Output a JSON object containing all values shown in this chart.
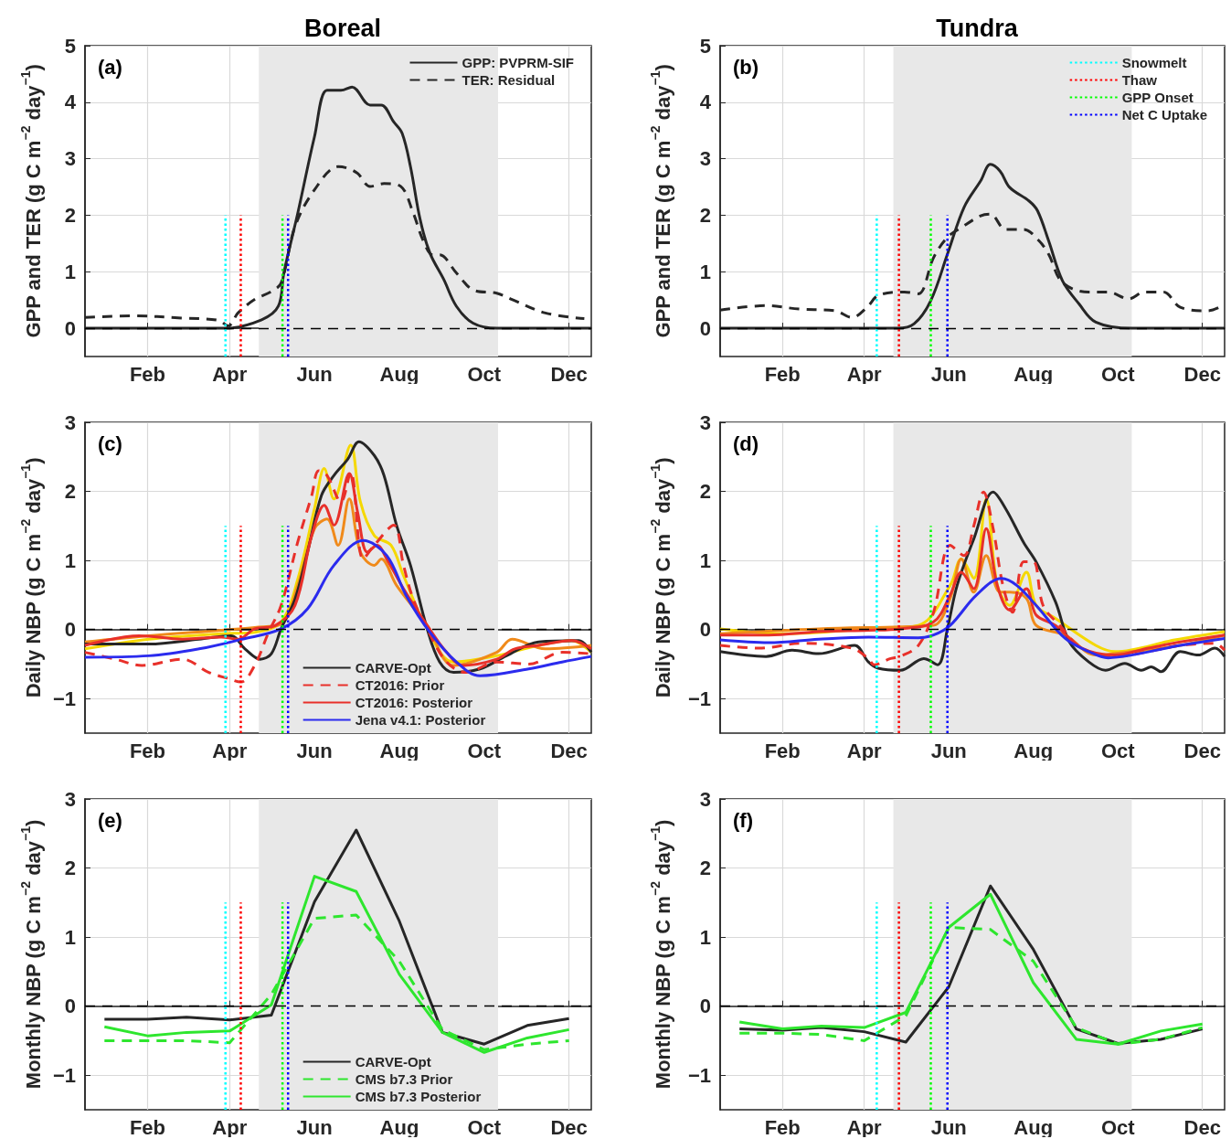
{
  "chart_data": [
    {
      "type": "line",
      "title": "Boreal",
      "ylabel": "GPP and TER (g C m$^{−2}$ day$^{−1}$)",
      "annotations": [
        "(a)"
      ],
      "xlim": [
        "--01-01",
        "--12-31"
      ],
      "xticks": [
        {
          "value": "--02-15",
          "label": "Feb"
        },
        {
          "value": "--04-15",
          "label": "Apr"
        },
        {
          "value": "--06-15",
          "label": "Jun"
        },
        {
          "value": "--08-15",
          "label": "Aug"
        },
        {
          "value": "--10-15",
          "label": "Oct"
        },
        {
          "value": "--12-15",
          "label": "Dec"
        }
      ],
      "ylim": [
        -0.5,
        5
      ],
      "yticks": [
        0,
        1,
        2,
        3,
        4,
        5
      ],
      "grid": true,
      "legend": "top right",
      "ref_lines": [
        {
          "axis": "y",
          "value": 0,
          "color": "#000000",
          "line_style": "dashed"
        }
      ],
      "bands": [
        {
          "axis": "x",
          "from": "--05-06",
          "to": "--10-25",
          "color": "#e8e8e8"
        }
      ],
      "series": [
        {
          "name": "GPP: PVPRM-SIF",
          "color": "#262626",
          "line_style": "solid",
          "x": [
            "--01-01",
            "--04-12",
            "--05-08",
            "--05-20",
            "--05-24",
            "--06-03",
            "--06-15",
            "--06-24",
            "--07-04",
            "--07-12",
            "--07-25",
            "--08-02",
            "--08-11",
            "--08-17",
            "--08-23",
            "--08-30",
            "--09-06",
            "--09-16",
            "--09-25",
            "--10-07",
            "--10-24",
            "--12-31"
          ],
          "values": [
            0,
            0,
            0.15,
            0.39,
            0.98,
            2.04,
            3.39,
            4.21,
            4.21,
            4.27,
            3.95,
            3.95,
            3.65,
            3.45,
            2.86,
            1.92,
            1.33,
            0.86,
            0.39,
            0.09,
            0,
            0
          ]
        },
        {
          "name": "TER: Residual",
          "color": "#262626",
          "line_style": "dashed",
          "x": [
            "--01-01",
            "--02-04",
            "--03-12",
            "--04-07",
            "--04-14",
            "--04-21",
            "--05-03",
            "--05-15",
            "--05-22",
            "--06-01",
            "--06-15",
            "--07-02",
            "--07-09",
            "--07-16",
            "--07-25",
            "--08-04",
            "--08-16",
            "--08-25",
            "--09-01",
            "--09-08",
            "--09-13",
            "--09-25",
            "--10-07",
            "--10-24",
            "--11-04",
            "--11-28",
            "--12-26"
          ],
          "values": [
            0.19,
            0.22,
            0.18,
            0.14,
            0.04,
            0.27,
            0.51,
            0.65,
            0.8,
            1.8,
            2.45,
            2.86,
            2.83,
            2.74,
            2.51,
            2.56,
            2.51,
            2.04,
            1.56,
            1.3,
            1.3,
            0.98,
            0.68,
            0.62,
            0.51,
            0.27,
            0.17
          ]
        },
        {
          "color": "#00ffff",
          "line_style": "dotted",
          "x": [
            "--04-12",
            "--04-12"
          ],
          "values": [
            -0.5,
            2
          ]
        },
        {
          "color": "#ff0000",
          "line_style": "dotted",
          "x": [
            "--04-23",
            "--04-23"
          ],
          "values": [
            -0.5,
            2
          ]
        },
        {
          "color": "#00ff00",
          "line_style": "dotted",
          "x": [
            "--05-23",
            "--05-23"
          ],
          "values": [
            -0.5,
            2
          ]
        },
        {
          "color": "#0000ff",
          "line_style": "dotted",
          "x": [
            "--05-27",
            "--05-27"
          ],
          "values": [
            -0.5,
            2
          ]
        }
      ]
    },
    {
      "type": "line",
      "title": "Tundra",
      "ylabel": "GPP and TER (g C m$^{−2}$ day$^{−1}$)",
      "annotations": [
        "(b)"
      ],
      "xlim": [
        "--01-01",
        "--12-31"
      ],
      "xticks": [
        {
          "value": "--02-15",
          "label": "Feb"
        },
        {
          "value": "--04-15",
          "label": "Apr"
        },
        {
          "value": "--06-15",
          "label": "Jun"
        },
        {
          "value": "--08-15",
          "label": "Aug"
        },
        {
          "value": "--10-15",
          "label": "Oct"
        },
        {
          "value": "--12-15",
          "label": "Dec"
        }
      ],
      "ylim": [
        -0.5,
        5
      ],
      "yticks": [
        0,
        1,
        2,
        3,
        4,
        5
      ],
      "grid": true,
      "legend": "top right",
      "ref_lines": [
        {
          "axis": "y",
          "value": 0,
          "color": "#000000",
          "line_style": "dashed"
        }
      ],
      "bands": [
        {
          "axis": "x",
          "from": "--05-06",
          "to": "--10-25",
          "color": "#e8e8e8"
        }
      ],
      "series": [
        {
          "color": "#262626",
          "line_style": "solid",
          "x": [
            "--01-01",
            "--05-09",
            "--05-21",
            "--06-02",
            "--06-14",
            "--06-26",
            "--07-08",
            "--07-15",
            "--07-22",
            "--07-29",
            "--08-12",
            "--08-18",
            "--08-26",
            "--09-05",
            "--09-17",
            "--09-29",
            "--10-25",
            "--12-31"
          ],
          "values": [
            0,
            0,
            0.08,
            0.49,
            1.31,
            2.14,
            2.61,
            2.9,
            2.78,
            2.49,
            2.25,
            2.08,
            1.55,
            0.84,
            0.43,
            0.11,
            0,
            0
          ]
        },
        {
          "color": "#262626",
          "line_style": "dashed",
          "x": [
            "--01-01",
            "--02-03",
            "--02-27",
            "--03-25",
            "--04-06",
            "--04-17",
            "--04-25",
            "--05-14",
            "--05-24",
            "--06-04",
            "--06-14",
            "--06-24",
            "--07-08",
            "--07-15",
            "--07-26",
            "--08-08",
            "--08-19",
            "--08-26",
            "--09-05",
            "--09-24",
            "--10-08",
            "--10-23",
            "--11-03",
            "--11-17",
            "--11-29",
            "--12-19",
            "--12-31"
          ],
          "values": [
            0.32,
            0.4,
            0.34,
            0.31,
            0.19,
            0.37,
            0.58,
            0.64,
            0.61,
            1.25,
            1.61,
            1.78,
            1.99,
            2.02,
            1.75,
            1.75,
            1.55,
            1.31,
            0.81,
            0.64,
            0.64,
            0.52,
            0.64,
            0.64,
            0.37,
            0.31,
            0.42
          ]
        },
        {
          "name": "Snowmelt",
          "color": "#00ffff",
          "line_style": "dotted",
          "x": [
            "--04-24",
            "--04-24"
          ],
          "values": [
            -0.5,
            2
          ]
        },
        {
          "name": "Thaw",
          "color": "#ff0000",
          "line_style": "dotted",
          "x": [
            "--05-10",
            "--05-10"
          ],
          "values": [
            -0.5,
            2
          ]
        },
        {
          "name": "GPP Onset",
          "color": "#00ff00",
          "line_style": "dotted",
          "x": [
            "--06-02",
            "--06-02"
          ],
          "values": [
            -0.5,
            2
          ]
        },
        {
          "name": "Net C Uptake",
          "color": "#0000ff",
          "line_style": "dotted",
          "x": [
            "--06-14",
            "--06-14"
          ],
          "values": [
            -0.5,
            2
          ]
        }
      ]
    },
    {
      "type": "line",
      "ylabel": "Daily NBP (g C m$^{−2}$ day$^{−1}$)",
      "annotations": [
        "(c)"
      ],
      "xlim": [
        "--01-01",
        "--12-31"
      ],
      "xticks": [
        {
          "value": "--02-15",
          "label": "Feb"
        },
        {
          "value": "--04-15",
          "label": "Apr"
        },
        {
          "value": "--06-15",
          "label": "Jun"
        },
        {
          "value": "--08-15",
          "label": "Aug"
        },
        {
          "value": "--10-15",
          "label": "Oct"
        },
        {
          "value": "--12-15",
          "label": "Dec"
        }
      ],
      "ylim": [
        -1.5,
        3
      ],
      "yticks": [
        -1,
        0,
        1,
        2,
        3
      ],
      "grid": true,
      "legend": "bottom",
      "ref_lines": [
        {
          "axis": "y",
          "value": 0,
          "color": "#000000",
          "line_style": "dashed"
        }
      ],
      "bands": [
        {
          "axis": "x",
          "from": "--05-06",
          "to": "--10-25",
          "color": "#e8e8e8"
        }
      ],
      "series": [
        {
          "color": "#f5d800",
          "line_style": "solid",
          "x": [
            "--01-01",
            "--02-16",
            "--04-09",
            "--05-03",
            "--05-22",
            "--06-03",
            "--06-15",
            "--06-22",
            "--06-29",
            "--07-11",
            "--07-18",
            "--07-28",
            "--08-09",
            "--08-18",
            "--09-04",
            "--09-23",
            "--10-24",
            "--11-23",
            "--12-17",
            "--12-31"
          ],
          "values": [
            -0.28,
            -0.14,
            -0.06,
            -0.04,
            0.11,
            0.73,
            1.75,
            2.33,
            1.89,
            2.67,
            1.85,
            1.36,
            1.22,
            0.78,
            0.01,
            -0.47,
            -0.38,
            -0.23,
            -0.16,
            -0.33
          ]
        },
        {
          "color": "#f08a1a",
          "line_style": "solid",
          "x": [
            "--01-01",
            "--02-16",
            "--04-09",
            "--05-03",
            "--05-22",
            "--06-03",
            "--06-15",
            "--06-24",
            "--07-02",
            "--07-10",
            "--07-18",
            "--07-28",
            "--08-02",
            "--08-13",
            "--09-04",
            "--09-23",
            "--10-24",
            "--11-04",
            "--11-28",
            "--12-31"
          ],
          "values": [
            -0.18,
            -0.09,
            -0.01,
            0.03,
            0.08,
            0.64,
            1.46,
            1.6,
            1.22,
            1.89,
            1.12,
            0.93,
            1.02,
            0.64,
            0.06,
            -0.52,
            -0.33,
            -0.14,
            -0.28,
            -0.23
          ]
        },
        {
          "name": "CARVE-Opt",
          "color": "#262626",
          "line_style": "solid",
          "x": [
            "--01-01",
            "--02-16",
            "--03-24",
            "--04-16",
            "--04-26",
            "--05-07",
            "--05-15",
            "--05-22",
            "--06-01",
            "--06-10",
            "--06-20",
            "--06-29",
            "--07-09",
            "--07-17",
            "--07-28",
            "--08-04",
            "--08-13",
            "--08-23",
            "--09-04",
            "--09-13",
            "--09-23",
            "--10-12",
            "--10-31",
            "--11-23",
            "--12-22",
            "--12-31"
          ],
          "values": [
            -0.21,
            -0.21,
            -0.14,
            -0.09,
            -0.28,
            -0.43,
            -0.35,
            0.01,
            0.44,
            1.12,
            1.94,
            2.23,
            2.47,
            2.72,
            2.52,
            2.23,
            1.51,
            0.93,
            0.01,
            -0.47,
            -0.62,
            -0.57,
            -0.38,
            -0.18,
            -0.16,
            -0.33
          ]
        },
        {
          "name": "CT2016: Prior",
          "color": "#e8302a",
          "line_style": "dashed",
          "x": [
            "--01-01",
            "--01-23",
            "--02-11",
            "--03-12",
            "--03-31",
            "--04-14",
            "--04-23",
            "--05-03",
            "--05-13",
            "--05-22",
            "--06-03",
            "--06-13",
            "--06-18",
            "--06-24",
            "--07-04",
            "--07-11",
            "--07-20",
            "--07-28",
            "--08-11",
            "--08-18",
            "--08-25",
            "--09-04",
            "--09-18",
            "--10-02",
            "--10-24",
            "--11-16",
            "--12-10",
            "--12-31"
          ],
          "values": [
            -0.33,
            -0.43,
            -0.52,
            -0.43,
            -0.62,
            -0.71,
            -0.76,
            -0.52,
            -0.04,
            0.35,
            1.27,
            1.94,
            2.3,
            2.23,
            1.85,
            2.28,
            1.02,
            1.22,
            1.51,
            0.93,
            0.44,
            0.01,
            -0.47,
            -0.62,
            -0.47,
            -0.5,
            -0.33,
            -0.35
          ]
        },
        {
          "name": "CT2016: Posterior",
          "color": "#e8302a",
          "line_style": "solid",
          "x": [
            "--01-01",
            "--02-09",
            "--03-12",
            "--04-09",
            "--04-21",
            "--05-03",
            "--05-18",
            "--06-01",
            "--06-13",
            "--06-22",
            "--06-29",
            "--07-10",
            "--07-16",
            "--07-23",
            "--07-30",
            "--08-06",
            "--08-18",
            "--09-04",
            "--09-18",
            "--09-30",
            "--10-24",
            "--11-06",
            "--11-23",
            "--12-17",
            "--12-31"
          ],
          "values": [
            -0.23,
            -0.09,
            -0.14,
            -0.11,
            -0.14,
            0.01,
            0.06,
            0.35,
            1.36,
            1.8,
            1.51,
            2.26,
            1.7,
            1.12,
            1.22,
            1.02,
            0.59,
            0.06,
            -0.33,
            -0.52,
            -0.43,
            -0.28,
            -0.23,
            -0.16,
            -0.28
          ]
        },
        {
          "name": "Jena v4.1: Posterior",
          "color": "#2b2bee",
          "line_style": "solid",
          "x": [
            "--01-01",
            "--02-16",
            "--03-24",
            "--04-24",
            "--05-22",
            "--06-10",
            "--06-29",
            "--07-20",
            "--08-06",
            "--08-20",
            "--09-06",
            "--09-25",
            "--10-12",
            "--11-16",
            "--12-10",
            "--12-31"
          ],
          "values": [
            -0.4,
            -0.38,
            -0.28,
            -0.14,
            0.01,
            0.3,
            0.93,
            1.29,
            1.07,
            0.49,
            -0.04,
            -0.47,
            -0.67,
            -0.57,
            -0.47,
            -0.39
          ]
        },
        {
          "color": "#00ffff",
          "line_style": "dotted",
          "x": [
            "--04-12",
            "--04-12"
          ],
          "values": [
            -1.5,
            1.5
          ]
        },
        {
          "color": "#ff0000",
          "line_style": "dotted",
          "x": [
            "--04-23",
            "--04-23"
          ],
          "values": [
            -1.5,
            1.5
          ]
        },
        {
          "color": "#00ff00",
          "line_style": "dotted",
          "x": [
            "--05-23",
            "--05-23"
          ],
          "values": [
            -1.5,
            1.5
          ]
        },
        {
          "color": "#0000ff",
          "line_style": "dotted",
          "x": [
            "--05-27",
            "--05-27"
          ],
          "values": [
            -1.5,
            1.5
          ]
        }
      ]
    },
    {
      "type": "line",
      "ylabel": "Daily NBP (g C m$^{−2}$ day$^{−1}$)",
      "annotations": [
        "(d)"
      ],
      "xlim": [
        "--01-01",
        "--12-31"
      ],
      "xticks": [
        {
          "value": "--02-15",
          "label": "Feb"
        },
        {
          "value": "--04-15",
          "label": "Apr"
        },
        {
          "value": "--06-15",
          "label": "Jun"
        },
        {
          "value": "--08-15",
          "label": "Aug"
        },
        {
          "value": "--10-15",
          "label": "Oct"
        },
        {
          "value": "--12-15",
          "label": "Dec"
        }
      ],
      "ylim": [
        -1.5,
        3
      ],
      "yticks": [
        -1,
        0,
        1,
        2,
        3
      ],
      "grid": true,
      "ref_lines": [
        {
          "axis": "y",
          "value": 0,
          "color": "#000000",
          "line_style": "dashed"
        }
      ],
      "bands": [
        {
          "axis": "x",
          "from": "--05-06",
          "to": "--10-25",
          "color": "#e8e8e8"
        }
      ],
      "series": [
        {
          "color": "#f5d800",
          "line_style": "solid",
          "x": [
            "--01-01",
            "--02-17",
            "--04-18",
            "--05-24",
            "--06-16",
            "--06-24",
            "--07-03",
            "--07-12",
            "--07-20",
            "--07-29",
            "--08-10",
            "--08-17",
            "--08-31",
            "--09-29",
            "--10-13",
            "--11-25",
            "--12-31"
          ],
          "values": [
            0.01,
            -0.06,
            0.01,
            0.06,
            0.64,
            1.02,
            0.74,
            1.89,
            0.64,
            0.35,
            0.83,
            0.35,
            0.16,
            -0.23,
            -0.32,
            -0.15,
            -0.03
          ]
        },
        {
          "color": "#f08a1a",
          "line_style": "solid",
          "x": [
            "--01-01",
            "--03-13",
            "--05-11",
            "--06-04",
            "--06-16",
            "--06-24",
            "--07-03",
            "--07-12",
            "--07-22",
            "--07-29",
            "--08-10",
            "--08-17",
            "--09-07",
            "--09-29",
            "--10-25",
            "--11-29",
            "--12-31"
          ],
          "values": [
            -0.06,
            0.01,
            0.04,
            0.06,
            0.45,
            1.02,
            0.54,
            1.07,
            0.54,
            0.54,
            0.45,
            0.06,
            -0.08,
            -0.37,
            -0.32,
            -0.23,
            -0.08
          ]
        },
        {
          "color": "#262626",
          "line_style": "solid",
          "x": [
            "--01-01",
            "--02-03",
            "--02-22",
            "--03-13",
            "--04-08",
            "--04-18",
            "--04-25",
            "--05-11",
            "--05-28",
            "--06-07",
            "--06-14",
            "--06-21",
            "--07-03",
            "--07-17",
            "--07-26",
            "--08-08",
            "--08-17",
            "--08-31",
            "--09-10",
            "--09-24",
            "--10-06",
            "--10-20",
            "--11-01",
            "--11-08",
            "--11-15",
            "--11-29",
            "--12-12",
            "--12-24",
            "--12-31"
          ],
          "values": [
            -0.32,
            -0.39,
            -0.3,
            -0.35,
            -0.23,
            -0.47,
            -0.56,
            -0.59,
            -0.42,
            -0.51,
            0.01,
            0.64,
            1.31,
            1.99,
            1.75,
            1.26,
            0.98,
            0.4,
            -0.18,
            -0.47,
            -0.59,
            -0.49,
            -0.59,
            -0.54,
            -0.61,
            -0.32,
            -0.37,
            -0.27,
            -0.39
          ]
        },
        {
          "color": "#e8302a",
          "line_style": "dashed",
          "x": [
            "--01-01",
            "--01-29",
            "--03-01",
            "--04-06",
            "--04-18",
            "--04-22",
            "--05-04",
            "--05-11",
            "--05-24",
            "--06-04",
            "--06-16",
            "--06-26",
            "--07-03",
            "--07-10",
            "--07-17",
            "--07-24",
            "--07-31",
            "--08-08",
            "--08-15",
            "--08-22",
            "--09-03",
            "--09-19",
            "--10-13",
            "--11-06",
            "--11-29",
            "--12-24",
            "--12-31"
          ],
          "values": [
            -0.23,
            -0.27,
            -0.2,
            -0.27,
            -0.42,
            -0.51,
            -0.42,
            -0.39,
            -0.23,
            0.25,
            1.22,
            1.07,
            1.5,
            1.99,
            1.46,
            0.64,
            0.25,
            0.98,
            0.98,
            0.35,
            0.06,
            -0.27,
            -0.39,
            -0.32,
            -0.23,
            -0.2,
            -0.3
          ]
        },
        {
          "color": "#e8302a",
          "line_style": "solid",
          "x": [
            "--01-01",
            "--02-05",
            "--03-13",
            "--04-18",
            "--05-11",
            "--06-04",
            "--06-16",
            "--06-24",
            "--07-03",
            "--07-12",
            "--07-20",
            "--07-29",
            "--08-10",
            "--08-17",
            "--08-31",
            "--09-19",
            "--10-13",
            "--11-06",
            "--11-29",
            "--12-31"
          ],
          "values": [
            -0.08,
            -0.08,
            -0.03,
            -0.01,
            0.01,
            0.11,
            0.5,
            0.83,
            0.59,
            1.46,
            0.64,
            0.28,
            0.59,
            0.21,
            0.06,
            -0.27,
            -0.37,
            -0.27,
            -0.18,
            -0.08
          ]
        },
        {
          "color": "#2b2bee",
          "line_style": "solid",
          "x": [
            "--01-01",
            "--02-05",
            "--03-13",
            "--04-18",
            "--05-24",
            "--06-04",
            "--06-16",
            "--07-05",
            "--07-23",
            "--08-03",
            "--08-17",
            "--09-07",
            "--09-24",
            "--10-08",
            "--10-25",
            "--11-29",
            "--12-31"
          ],
          "values": [
            -0.15,
            -0.19,
            -0.14,
            -0.11,
            -0.12,
            -0.08,
            0.06,
            0.5,
            0.74,
            0.64,
            0.35,
            -0.13,
            -0.32,
            -0.41,
            -0.37,
            -0.23,
            -0.13
          ]
        },
        {
          "color": "#00ffff",
          "line_style": "dotted",
          "x": [
            "--04-24",
            "--04-24"
          ],
          "values": [
            -1.5,
            1.5
          ]
        },
        {
          "color": "#ff0000",
          "line_style": "dotted",
          "x": [
            "--05-10",
            "--05-10"
          ],
          "values": [
            -1.5,
            1.5
          ]
        },
        {
          "color": "#00ff00",
          "line_style": "dotted",
          "x": [
            "--06-02",
            "--06-02"
          ],
          "values": [
            -1.5,
            1.5
          ]
        },
        {
          "color": "#0000ff",
          "line_style": "dotted",
          "x": [
            "--06-14",
            "--06-14"
          ],
          "values": [
            -1.5,
            1.5
          ]
        }
      ]
    },
    {
      "type": "line",
      "ylabel": "Monthly NBP (g C m$^{−2}$ day$^{−1}$)",
      "annotations": [
        "(e)"
      ],
      "xlim": [
        "--01-01",
        "--12-31"
      ],
      "xticks": [
        {
          "value": "--02-15",
          "label": "Feb"
        },
        {
          "value": "--04-15",
          "label": "Apr"
        },
        {
          "value": "--06-15",
          "label": "Jun"
        },
        {
          "value": "--08-15",
          "label": "Aug"
        },
        {
          "value": "--10-15",
          "label": "Oct"
        },
        {
          "value": "--12-15",
          "label": "Dec"
        }
      ],
      "ylim": [
        -1.5,
        3
      ],
      "yticks": [
        -1,
        0,
        1,
        2,
        3
      ],
      "grid": true,
      "legend": "bottom",
      "ref_lines": [
        {
          "axis": "y",
          "value": 0,
          "color": "#000000",
          "line_style": "dashed"
        }
      ],
      "bands": [
        {
          "axis": "x",
          "from": "--05-06",
          "to": "--10-25",
          "color": "#e8e8e8"
        }
      ],
      "series": [
        {
          "name": "CARVE-Opt",
          "color": "#262626",
          "line_style": "solid",
          "x": [
            "--01-15",
            "--02-15",
            "--03-15",
            "--04-15",
            "--05-15",
            "--06-15",
            "--07-15",
            "--08-15",
            "--09-15",
            "--10-15",
            "--11-15",
            "--12-15"
          ],
          "values": [
            -0.19,
            -0.19,
            -0.16,
            -0.2,
            -0.13,
            1.51,
            2.55,
            1.23,
            -0.38,
            -0.55,
            -0.28,
            -0.18
          ]
        },
        {
          "name": "CMS b7.3 Prior",
          "color": "#2ee62e",
          "line_style": "dashed",
          "x": [
            "--01-15",
            "--02-15",
            "--03-15",
            "--04-15",
            "--05-15",
            "--06-15",
            "--07-15",
            "--08-15",
            "--09-15",
            "--10-15",
            "--11-15",
            "--12-15"
          ],
          "values": [
            -0.5,
            -0.5,
            -0.5,
            -0.53,
            0.17,
            1.27,
            1.32,
            0.65,
            -0.34,
            -0.63,
            -0.55,
            -0.5
          ]
        },
        {
          "name": "CMS b7.3 Posterior",
          "color": "#2ee62e",
          "line_style": "solid",
          "x": [
            "--01-15",
            "--02-15",
            "--03-15",
            "--04-15",
            "--05-15",
            "--06-15",
            "--07-15",
            "--08-15",
            "--09-15",
            "--10-15",
            "--11-15",
            "--12-15"
          ],
          "values": [
            -0.3,
            -0.43,
            -0.38,
            -0.36,
            0.02,
            1.88,
            1.66,
            0.46,
            -0.38,
            -0.67,
            -0.46,
            -0.34
          ]
        },
        {
          "color": "#00ffff",
          "line_style": "dotted",
          "x": [
            "--04-12",
            "--04-12"
          ],
          "values": [
            -1.5,
            1.5
          ]
        },
        {
          "color": "#ff0000",
          "line_style": "dotted",
          "x": [
            "--04-23",
            "--04-23"
          ],
          "values": [
            -1.5,
            1.5
          ]
        },
        {
          "color": "#00ff00",
          "line_style": "dotted",
          "x": [
            "--05-23",
            "--05-23"
          ],
          "values": [
            -1.5,
            1.5
          ]
        },
        {
          "color": "#0000ff",
          "line_style": "dotted",
          "x": [
            "--05-27",
            "--05-27"
          ],
          "values": [
            -1.5,
            1.5
          ]
        }
      ]
    },
    {
      "type": "line",
      "ylabel": "Monthly NBP (g C m$^{−2}$ day$^{−1}$)",
      "annotations": [
        "(f)"
      ],
      "xlim": [
        "--01-01",
        "--12-31"
      ],
      "xticks": [
        {
          "value": "--02-15",
          "label": "Feb"
        },
        {
          "value": "--04-15",
          "label": "Apr"
        },
        {
          "value": "--06-15",
          "label": "Jun"
        },
        {
          "value": "--08-15",
          "label": "Aug"
        },
        {
          "value": "--10-15",
          "label": "Oct"
        },
        {
          "value": "--12-15",
          "label": "Dec"
        }
      ],
      "ylim": [
        -1.5,
        3
      ],
      "yticks": [
        -1,
        0,
        1,
        2,
        3
      ],
      "grid": true,
      "ref_lines": [
        {
          "axis": "y",
          "value": 0,
          "color": "#000000",
          "line_style": "dashed"
        }
      ],
      "bands": [
        {
          "axis": "x",
          "from": "--05-06",
          "to": "--10-25",
          "color": "#e8e8e8"
        }
      ],
      "series": [
        {
          "color": "#262626",
          "line_style": "solid",
          "x": [
            "--01-15",
            "--02-15",
            "--03-15",
            "--04-15",
            "--05-15",
            "--06-15",
            "--07-15",
            "--08-15",
            "--09-15",
            "--10-15",
            "--11-15",
            "--12-15"
          ],
          "values": [
            -0.33,
            -0.35,
            -0.31,
            -0.37,
            -0.52,
            0.28,
            1.74,
            0.82,
            -0.33,
            -0.54,
            -0.48,
            -0.33
          ]
        },
        {
          "color": "#2ee62e",
          "line_style": "dashed",
          "x": [
            "--01-15",
            "--02-15",
            "--03-15",
            "--04-15",
            "--05-15",
            "--06-15",
            "--07-15",
            "--08-15",
            "--09-15",
            "--10-15",
            "--11-15",
            "--12-15"
          ],
          "values": [
            -0.39,
            -0.39,
            -0.41,
            -0.5,
            -0.14,
            1.14,
            1.11,
            0.65,
            -0.31,
            -0.55,
            -0.48,
            -0.31
          ]
        },
        {
          "color": "#2ee62e",
          "line_style": "solid",
          "x": [
            "--01-15",
            "--02-15",
            "--03-15",
            "--04-15",
            "--05-15",
            "--06-15",
            "--07-15",
            "--08-15",
            "--09-15",
            "--10-15",
            "--11-15",
            "--12-15"
          ],
          "values": [
            -0.23,
            -0.33,
            -0.29,
            -0.31,
            -0.09,
            1.14,
            1.62,
            0.34,
            -0.48,
            -0.55,
            -0.36,
            -0.26
          ]
        },
        {
          "color": "#00ffff",
          "line_style": "dotted",
          "x": [
            "--04-24",
            "--04-24"
          ],
          "values": [
            -1.5,
            1.5
          ]
        },
        {
          "color": "#ff0000",
          "line_style": "dotted",
          "x": [
            "--05-10",
            "--05-10"
          ],
          "values": [
            -1.5,
            1.5
          ]
        },
        {
          "color": "#00ff00",
          "line_style": "dotted",
          "x": [
            "--06-02",
            "--06-02"
          ],
          "values": [
            -1.5,
            1.5
          ]
        },
        {
          "color": "#0000ff",
          "line_style": "dotted",
          "x": [
            "--06-14",
            "--06-14"
          ],
          "values": [
            -1.5,
            1.5
          ]
        }
      ]
    }
  ]
}
